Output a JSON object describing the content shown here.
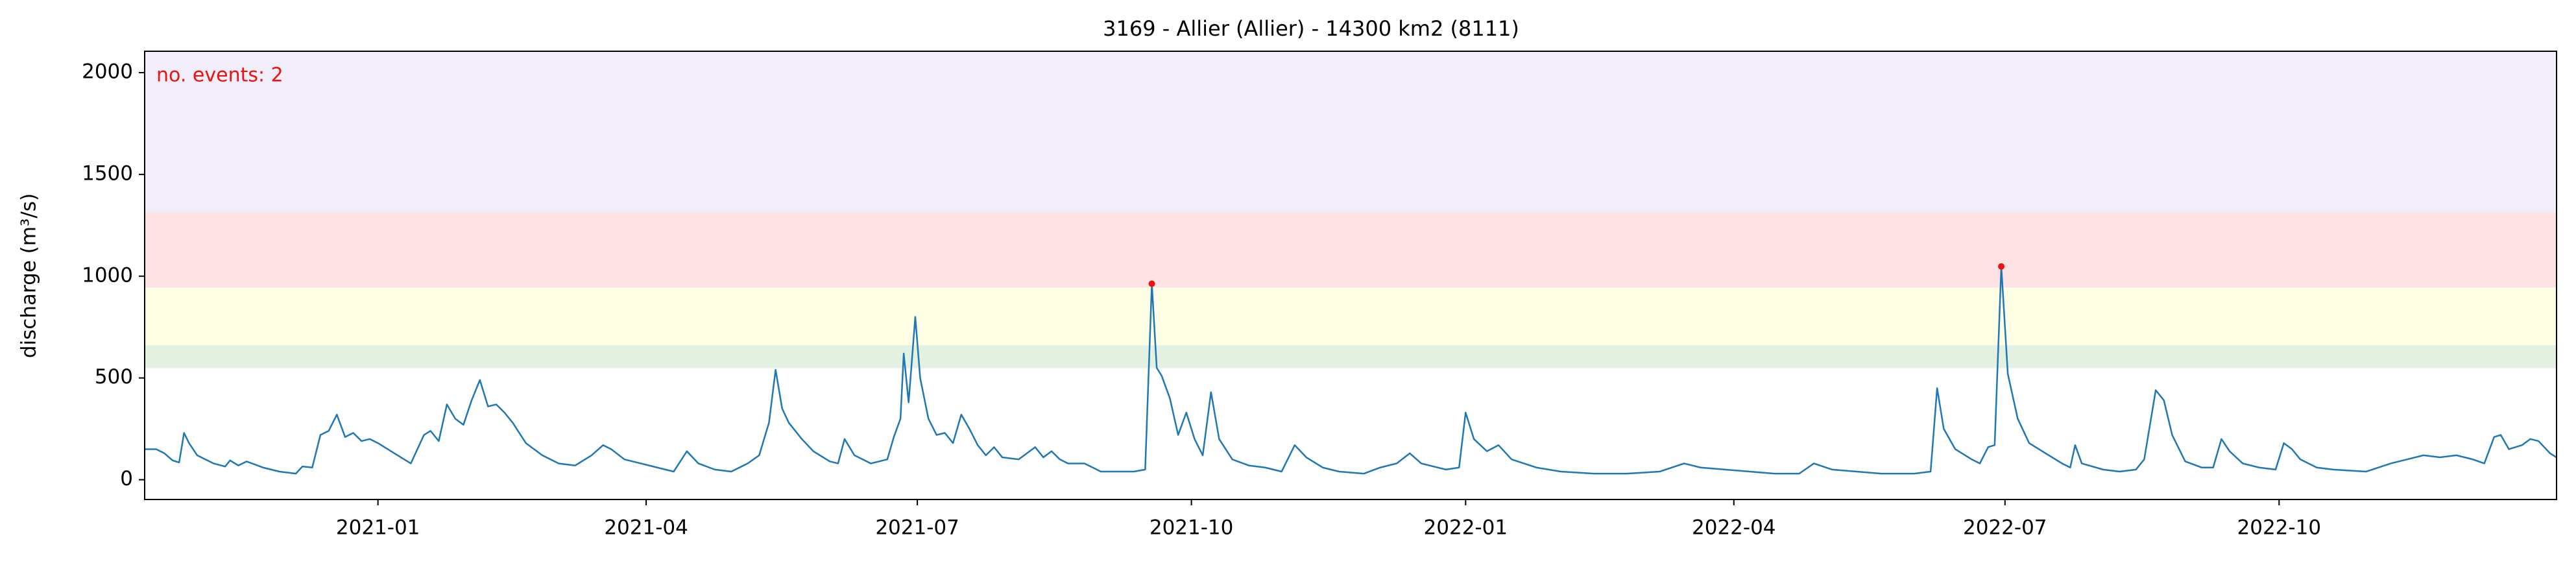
{
  "chart_data": {
    "type": "line",
    "title": "3169 - Allier (Allier) - 14300 km2 (8111)",
    "ylabel": "discharge (m³/s)",
    "annotation": "no. events: 2",
    "annotation_color": "#ee1111",
    "color": "#1f77b4",
    "x": [
      2020.7855,
      2020.7961,
      2020.8036,
      2020.8112,
      2020.8172,
      2020.8217,
      2020.8263,
      2020.8338,
      2020.8489,
      2020.8595,
      2020.864,
      2020.8716,
      2020.8792,
      2020.8943,
      2020.9094,
      2020.9245,
      2020.9305,
      2020.9396,
      2020.9471,
      2020.9547,
      2020.9622,
      2020.9698,
      2020.9773,
      2020.9849,
      2020.9924,
      2021.0,
      2021.0151,
      2021.0302,
      2021.0423,
      2021.0483,
      2021.0559,
      2021.0634,
      2021.071,
      2021.0786,
      2021.0861,
      2021.0937,
      2021.1012,
      2021.1088,
      2021.1163,
      2021.1239,
      2021.136,
      2021.1511,
      2021.1662,
      2021.1813,
      2021.1964,
      2021.207,
      2021.2145,
      2021.2266,
      2021.2417,
      2021.2568,
      2021.2719,
      2021.284,
      2021.2946,
      2021.3097,
      2021.3248,
      2021.3399,
      2021.3505,
      2021.3595,
      2021.3656,
      2021.3716,
      2021.3777,
      2021.3897,
      2021.4003,
      2021.4154,
      2021.423,
      2021.429,
      2021.4381,
      2021.4532,
      2021.4683,
      2021.4743,
      2021.4804,
      2021.4834,
      2021.4879,
      2021.494,
      2021.4985,
      2021.5061,
      2021.5136,
      2021.5212,
      2021.5287,
      2021.5363,
      2021.5438,
      2021.5514,
      2021.5589,
      2021.5665,
      2021.574,
      2021.5891,
      2021.6042,
      2021.6118,
      2021.6193,
      2021.6269,
      2021.6345,
      2021.6496,
      2021.6647,
      2021.6798,
      2021.6949,
      2021.7054,
      2021.7115,
      2021.716,
      2021.7206,
      2021.7281,
      2021.7357,
      2021.7432,
      2021.7508,
      2021.7583,
      2021.7659,
      2021.7734,
      2021.7855,
      2021.8006,
      2021.8157,
      2021.8308,
      2021.8429,
      2021.8535,
      2021.8686,
      2021.8837,
      2021.9064,
      2021.9215,
      2021.9366,
      2021.9487,
      2021.9592,
      2021.9819,
      2021.994,
      2022.0,
      2022.0076,
      2022.0196,
      2022.0302,
      2022.0423,
      2022.065,
      2022.0876,
      2022.1178,
      2022.148,
      2022.1783,
      2022.2009,
      2022.216,
      2022.2387,
      2022.2613,
      2022.284,
      2022.3067,
      2022.3202,
      2022.3369,
      2022.3595,
      2022.3822,
      2022.4124,
      2022.4275,
      2022.4335,
      2022.4396,
      2022.4502,
      2022.4653,
      2022.4728,
      2022.4804,
      2022.4864,
      2022.4925,
      2022.4985,
      2022.5076,
      2022.5181,
      2022.5332,
      2022.5484,
      2022.5559,
      2022.5604,
      2022.5665,
      2022.5861,
      2022.6012,
      2022.6163,
      2022.6239,
      2022.6345,
      2022.642,
      2022.6496,
      2022.6616,
      2022.6767,
      2022.6873,
      2022.6949,
      2022.7024,
      2022.7145,
      2022.7296,
      2022.7447,
      2022.7523,
      2022.7598,
      2022.7674,
      2022.7825,
      2022.7976,
      2022.8278,
      2022.8505,
      2022.8656,
      2022.8807,
      2022.8958,
      2022.9109,
      2022.926,
      2022.9366,
      2022.9456,
      2022.9517,
      2022.9592,
      2022.9713,
      2022.9789,
      2022.9864,
      2022.997,
      2023.003
    ],
    "values": [
      150,
      150,
      130,
      95,
      85,
      230,
      180,
      120,
      80,
      65,
      95,
      70,
      90,
      60,
      40,
      30,
      65,
      60,
      220,
      240,
      320,
      210,
      230,
      190,
      200,
      180,
      130,
      80,
      220,
      240,
      190,
      370,
      300,
      270,
      390,
      490,
      360,
      370,
      330,
      280,
      180,
      120,
      80,
      70,
      120,
      170,
      150,
      100,
      80,
      60,
      40,
      140,
      80,
      50,
      40,
      80,
      120,
      280,
      540,
      350,
      280,
      200,
      140,
      90,
      80,
      200,
      120,
      80,
      100,
      210,
      300,
      620,
      380,
      800,
      500,
      300,
      220,
      230,
      180,
      320,
      250,
      170,
      120,
      160,
      110,
      100,
      160,
      110,
      140,
      100,
      80,
      80,
      40,
      40,
      40,
      50,
      963,
      550,
      510,
      400,
      220,
      330,
      200,
      120,
      430,
      200,
      100,
      70,
      60,
      40,
      170,
      110,
      60,
      40,
      30,
      60,
      80,
      130,
      80,
      50,
      60,
      330,
      200,
      140,
      170,
      100,
      60,
      40,
      30,
      30,
      40,
      80,
      60,
      50,
      40,
      30,
      30,
      80,
      50,
      40,
      30,
      30,
      40,
      450,
      250,
      150,
      100,
      80,
      160,
      170,
      1048,
      520,
      300,
      180,
      130,
      80,
      60,
      170,
      80,
      50,
      40,
      50,
      100,
      440,
      390,
      220,
      90,
      60,
      60,
      200,
      140,
      80,
      60,
      50,
      180,
      150,
      100,
      60,
      50,
      40,
      80,
      100,
      120,
      110,
      120,
      100,
      80,
      210,
      220,
      150,
      170,
      200,
      190,
      130,
      110
    ],
    "events": {
      "x": [
        2021.7115,
        2022.4925
      ],
      "values": [
        963,
        1048
      ],
      "color": "#ee1111"
    },
    "bands": [
      {
        "from": 548,
        "to": 661,
        "color": "#e3f1e3"
      },
      {
        "from": 661,
        "to": 944,
        "color": "#ffffe6"
      },
      {
        "from": 944,
        "to": 1315,
        "color": "#ffe2e4"
      },
      {
        "from": 1315,
        "to": 2105,
        "color": "#f1eef9"
      }
    ],
    "xlim": [
      2020.7855,
      2023.003
    ],
    "ylim": [
      -97,
      2105
    ],
    "xticks": [
      {
        "value": 2021.0,
        "label": "2021-01"
      },
      {
        "value": 2021.2466,
        "label": "2021-04"
      },
      {
        "value": 2021.4959,
        "label": "2021-07"
      },
      {
        "value": 2021.7479,
        "label": "2021-10"
      },
      {
        "value": 2022.0,
        "label": "2022-01"
      },
      {
        "value": 2022.2466,
        "label": "2022-04"
      },
      {
        "value": 2022.4959,
        "label": "2022-07"
      },
      {
        "value": 2022.7479,
        "label": "2022-10"
      }
    ],
    "yticks": [
      0,
      500,
      1000,
      1500,
      2000
    ]
  }
}
